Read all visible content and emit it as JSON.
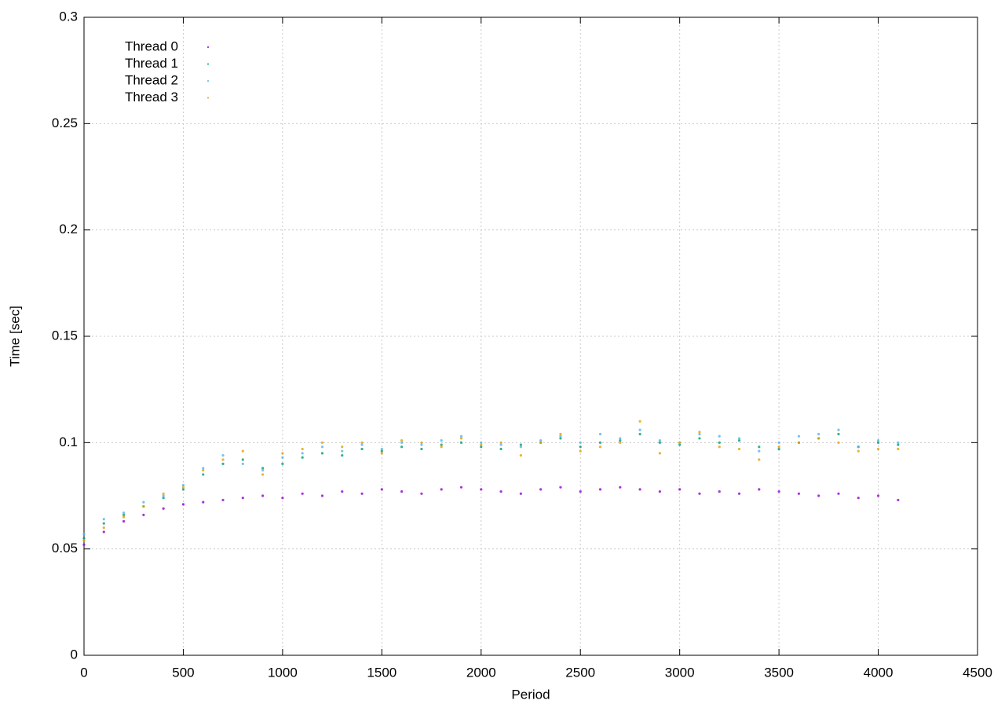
{
  "chart_data": {
    "type": "scatter",
    "xlabel": "Period",
    "ylabel": "Time [sec]",
    "x": [
      0,
      100,
      200,
      300,
      400,
      500,
      600,
      700,
      800,
      900,
      1000,
      1100,
      1200,
      1300,
      1400,
      1500,
      1600,
      1700,
      1800,
      1900,
      2000,
      2100,
      2200,
      2300,
      2400,
      2500,
      2600,
      2700,
      2800,
      2900,
      3000,
      3100,
      3200,
      3300,
      3400,
      3500,
      3600,
      3700,
      3800,
      3900,
      4000,
      4100
    ],
    "series": [
      {
        "name": "Thread 0",
        "color": "#9400d3",
        "values": [
          0.052,
          0.058,
          0.063,
          0.066,
          0.069,
          0.071,
          0.072,
          0.073,
          0.074,
          0.075,
          0.074,
          0.076,
          0.075,
          0.077,
          0.076,
          0.078,
          0.077,
          0.076,
          0.078,
          0.079,
          0.078,
          0.077,
          0.076,
          0.078,
          0.079,
          0.077,
          0.078,
          0.079,
          0.078,
          0.077,
          0.078,
          0.076,
          0.077,
          0.076,
          0.078,
          0.077,
          0.076,
          0.075,
          0.076,
          0.074,
          0.075,
          0.073
        ]
      },
      {
        "name": "Thread 1",
        "color": "#009e73",
        "values": [
          0.055,
          0.062,
          0.066,
          0.07,
          0.074,
          0.078,
          0.085,
          0.09,
          0.092,
          0.088,
          0.09,
          0.093,
          0.095,
          0.094,
          0.097,
          0.096,
          0.098,
          0.097,
          0.099,
          0.1,
          0.098,
          0.097,
          0.099,
          0.1,
          0.102,
          0.098,
          0.1,
          0.101,
          0.104,
          0.1,
          0.099,
          0.102,
          0.1,
          0.101,
          0.098,
          0.097,
          0.1,
          0.102,
          0.104,
          0.098,
          0.1,
          0.099
        ]
      },
      {
        "name": "Thread 2",
        "color": "#56b4e9",
        "values": [
          0.057,
          0.064,
          0.067,
          0.072,
          0.075,
          0.08,
          0.088,
          0.094,
          0.09,
          0.087,
          0.093,
          0.095,
          0.098,
          0.096,
          0.099,
          0.097,
          0.1,
          0.099,
          0.101,
          0.103,
          0.1,
          0.099,
          0.098,
          0.101,
          0.103,
          0.1,
          0.104,
          0.102,
          0.106,
          0.101,
          0.1,
          0.104,
          0.103,
          0.102,
          0.096,
          0.1,
          0.103,
          0.104,
          0.106,
          0.098,
          0.101,
          0.1
        ]
      },
      {
        "name": "Thread 3",
        "color": "#e69f00",
        "values": [
          0.054,
          0.06,
          0.065,
          0.07,
          0.076,
          0.079,
          0.087,
          0.092,
          0.096,
          0.085,
          0.095,
          0.097,
          0.1,
          0.098,
          0.1,
          0.095,
          0.101,
          0.1,
          0.098,
          0.102,
          0.099,
          0.1,
          0.094,
          0.1,
          0.104,
          0.096,
          0.098,
          0.1,
          0.11,
          0.095,
          0.1,
          0.105,
          0.098,
          0.097,
          0.092,
          0.098,
          0.1,
          0.102,
          0.1,
          0.096,
          0.097,
          0.097
        ]
      }
    ],
    "xlim": [
      0,
      4500
    ],
    "xticks": [
      0,
      500,
      1000,
      1500,
      2000,
      2500,
      3000,
      3500,
      4000,
      4500
    ],
    "ylim": [
      0,
      0.3
    ],
    "yticks": [
      0,
      0.05,
      0.1,
      0.15,
      0.2,
      0.25,
      0.3
    ],
    "grid": true,
    "legend": "top-left"
  }
}
